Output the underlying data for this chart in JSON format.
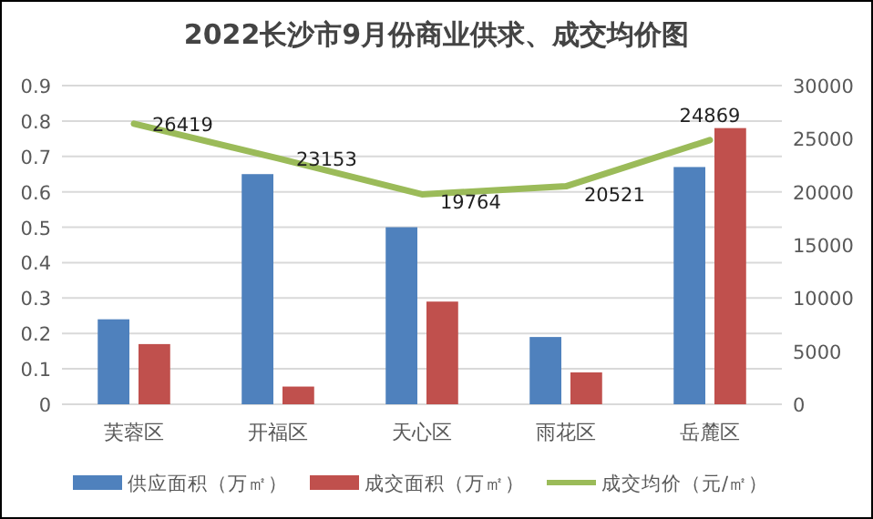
{
  "chart_data": {
    "type": "bar",
    "title": "2022长沙市9月份商业供求、成交均价图",
    "categories": [
      "芙蓉区",
      "开福区",
      "天心区",
      "雨花区",
      "岳麓区"
    ],
    "series": [
      {
        "name": "供应面积（万㎡）",
        "color": "#4f81bd",
        "values": [
          0.24,
          0.65,
          0.5,
          0.19,
          0.67
        ]
      },
      {
        "name": "成交面积（万㎡）",
        "color": "#c0504d",
        "values": [
          0.17,
          0.05,
          0.29,
          0.09,
          0.78
        ]
      },
      {
        "name": "成交均价（元/㎡）",
        "type": "line",
        "axis": "y2",
        "color": "#9bbb59",
        "values": [
          26419,
          23153,
          19764,
          20521,
          24869
        ],
        "value_labels": [
          "26419",
          "23153",
          "19764",
          "20521",
          "24869"
        ]
      }
    ],
    "ylim": [
      0,
      0.9
    ],
    "yticks": [
      0,
      0.1,
      0.2,
      0.3,
      0.4,
      0.5,
      0.6,
      0.7,
      0.8,
      0.9
    ],
    "y2lim": [
      0,
      30000
    ],
    "y2ticks": [
      0,
      5000,
      10000,
      15000,
      20000,
      25000,
      30000
    ],
    "grid": "y",
    "legend": "bottom"
  }
}
